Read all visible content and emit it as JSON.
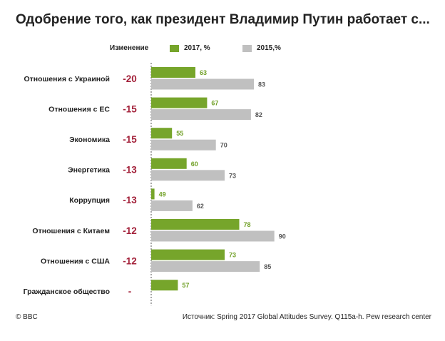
{
  "title": "Одобрение того, как президент Владимир Путин работает с...",
  "legend": {
    "change_label": "Изменение",
    "series_2017": "2017, %",
    "series_2015": "2015,%"
  },
  "footer": {
    "copyright": "© BBC",
    "source": "Источник: Spring 2017 Global Attitudes Survey. Q115a-h. Pew research center"
  },
  "colors": {
    "series_2017": "#76a52b",
    "series_2015": "#c0c0c0",
    "change": "#a3213a",
    "label_2017": "#6f9f24",
    "label_2015": "#555555"
  },
  "chart_data": {
    "type": "bar",
    "orientation": "horizontal",
    "categories": [
      "Отношения с Украиной",
      "Отношения с ЕС",
      "Экономика",
      "Энергетика",
      "Коррупция",
      "Отношения с Китаем",
      "Отношения с США",
      "Гражданское общество"
    ],
    "series": [
      {
        "name": "2017, %",
        "values": [
          63,
          67,
          55,
          60,
          49,
          78,
          73,
          57
        ]
      },
      {
        "name": "2015,%",
        "values": [
          83,
          82,
          70,
          73,
          62,
          90,
          85,
          null
        ]
      }
    ],
    "change": [
      "-20",
      "-15",
      "-15",
      "-13",
      "-13",
      "-12",
      "-12",
      "-"
    ],
    "xlim": [
      0,
      100
    ],
    "grid": false,
    "legend_position": "top"
  }
}
